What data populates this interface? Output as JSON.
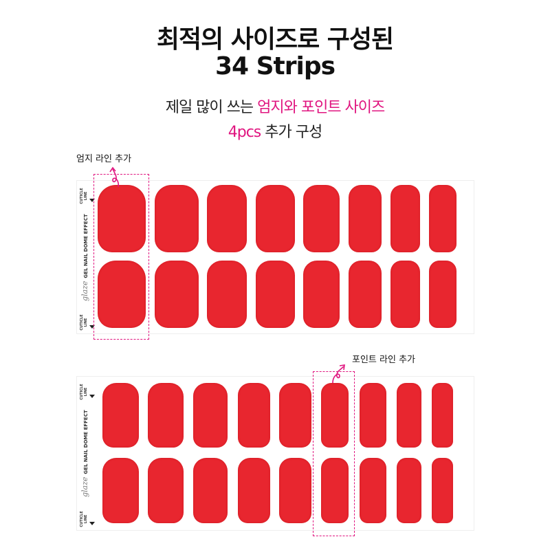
{
  "heading": {
    "line1": "최적의 사이즈로 구성된",
    "line2": "34 Strips"
  },
  "subheading": {
    "line1_plain": "제일 많이 쓰는 ",
    "line1_accent": "엄지와 포인트 사이즈",
    "line2_accent": "4pcs",
    "line2_plain": " 추가 구성"
  },
  "sheet_labels": {
    "brand": "glaze",
    "product": "GEL NAIL",
    "effect": "DOME EFFECT",
    "cuticle": "CUTICLE LINE"
  },
  "callouts": {
    "thumb": "엄지 라인 추가",
    "point": "포인트 라인 추가"
  },
  "colors": {
    "accent": "#e0147f",
    "nail": "#e8262f"
  },
  "strips_total": 34
}
